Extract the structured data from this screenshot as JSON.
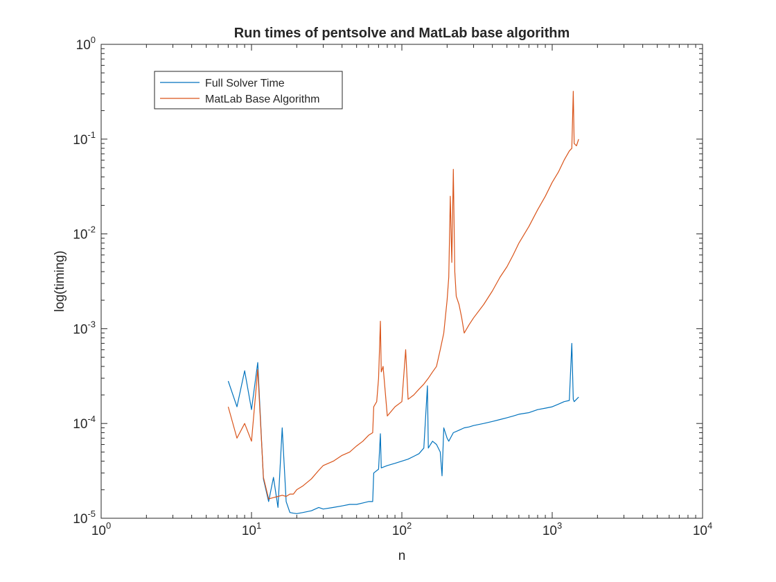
{
  "chart_data": {
    "type": "line",
    "title": "Run times of pentsolve and MatLab base algorithm",
    "xlabel": "n",
    "ylabel": "log(timing)",
    "xscale": "log",
    "yscale": "log",
    "xlim": [
      1,
      10000
    ],
    "ylim": [
      1e-05,
      1
    ],
    "grid": false,
    "legend_position": "top-left",
    "x_ticks": [
      {
        "value": 1,
        "base": "10",
        "exp": "0"
      },
      {
        "value": 10,
        "base": "10",
        "exp": "1"
      },
      {
        "value": 100,
        "base": "10",
        "exp": "2"
      },
      {
        "value": 1000,
        "base": "10",
        "exp": "3"
      },
      {
        "value": 10000,
        "base": "10",
        "exp": "4"
      }
    ],
    "y_ticks": [
      {
        "value": 1e-05,
        "base": "10",
        "exp": "-5"
      },
      {
        "value": 0.0001,
        "base": "10",
        "exp": "-4"
      },
      {
        "value": 0.001,
        "base": "10",
        "exp": "-3"
      },
      {
        "value": 0.01,
        "base": "10",
        "exp": "-2"
      },
      {
        "value": 0.1,
        "base": "10",
        "exp": "-1"
      },
      {
        "value": 1,
        "base": "10",
        "exp": "0"
      }
    ],
    "series": [
      {
        "name": "Full Solver Time",
        "color": "#0072BD",
        "x": [
          7,
          8,
          9,
          10,
          11,
          12,
          13,
          14,
          15,
          16,
          17,
          18,
          19,
          20,
          22,
          25,
          28,
          30,
          35,
          40,
          45,
          50,
          55,
          60,
          64,
          65,
          70,
          72,
          73,
          80,
          90,
          100,
          110,
          120,
          130,
          140,
          148,
          150,
          155,
          160,
          170,
          180,
          185,
          190,
          200,
          205,
          220,
          240,
          260,
          280,
          300,
          350,
          400,
          450,
          500,
          550,
          600,
          700,
          800,
          900,
          1000,
          1100,
          1200,
          1300,
          1350,
          1380,
          1400,
          1450,
          1500
        ],
        "y": [
          0.00028,
          0.00015,
          0.00036,
          0.00014,
          0.00044,
          2.6e-05,
          1.5e-05,
          2.7e-05,
          1.3e-05,
          9e-05,
          1.5e-05,
          1.15e-05,
          1.13e-05,
          1.12e-05,
          1.15e-05,
          1.2e-05,
          1.3e-05,
          1.25e-05,
          1.3e-05,
          1.35e-05,
          1.4e-05,
          1.4e-05,
          1.45e-05,
          1.5e-05,
          1.5e-05,
          3e-05,
          3.3e-05,
          7.8e-05,
          3.4e-05,
          3.6e-05,
          3.8e-05,
          4e-05,
          4.2e-05,
          4.5e-05,
          4.8e-05,
          5.5e-05,
          0.00025,
          5.5e-05,
          6e-05,
          6.5e-05,
          6e-05,
          5e-05,
          2.8e-05,
          9e-05,
          7e-05,
          6.5e-05,
          8e-05,
          8.5e-05,
          9e-05,
          9.2e-05,
          9.5e-05,
          0.0001,
          0.000105,
          0.00011,
          0.000115,
          0.00012,
          0.000125,
          0.00013,
          0.00014,
          0.000145,
          0.00015,
          0.00016,
          0.00017,
          0.000175,
          0.0007,
          0.00018,
          0.00017,
          0.00018,
          0.00019
        ]
      },
      {
        "name": "MatLab Base Algorithm",
        "color": "#D95319",
        "x": [
          7,
          8,
          9,
          10,
          11,
          12,
          13,
          14,
          15,
          16,
          17,
          18,
          19,
          20,
          22,
          25,
          28,
          30,
          35,
          40,
          45,
          50,
          55,
          60,
          64,
          65,
          68,
          70,
          72,
          73,
          75,
          80,
          90,
          100,
          106,
          110,
          120,
          130,
          140,
          150,
          160,
          170,
          180,
          190,
          200,
          205,
          210,
          215,
          220,
          225,
          230,
          240,
          250,
          260,
          280,
          300,
          350,
          400,
          450,
          500,
          550,
          600,
          700,
          800,
          900,
          1000,
          1100,
          1200,
          1300,
          1350,
          1380,
          1400,
          1450,
          1500
        ],
        "y": [
          0.00015,
          7e-05,
          0.0001,
          6.5e-05,
          0.00037,
          2.7e-05,
          1.6e-05,
          1.65e-05,
          1.7e-05,
          1.75e-05,
          1.7e-05,
          1.8e-05,
          1.8e-05,
          2e-05,
          2.2e-05,
          2.6e-05,
          3.2e-05,
          3.6e-05,
          4e-05,
          4.6e-05,
          5e-05,
          5.8e-05,
          6.5e-05,
          7.5e-05,
          8e-05,
          0.00015,
          0.00017,
          0.0003,
          0.0012,
          0.00035,
          0.0004,
          0.00012,
          0.00015,
          0.00017,
          0.0006,
          0.00018,
          0.0002,
          0.00023,
          0.00026,
          0.0003,
          0.00035,
          0.0004,
          0.0006,
          0.0009,
          0.002,
          0.0035,
          0.025,
          0.005,
          0.048,
          0.004,
          0.0022,
          0.0018,
          0.0013,
          0.0009,
          0.0011,
          0.0013,
          0.0018,
          0.0025,
          0.0035,
          0.0045,
          0.006,
          0.008,
          0.012,
          0.018,
          0.025,
          0.035,
          0.045,
          0.06,
          0.075,
          0.08,
          0.32,
          0.09,
          0.085,
          0.1
        ]
      }
    ]
  }
}
